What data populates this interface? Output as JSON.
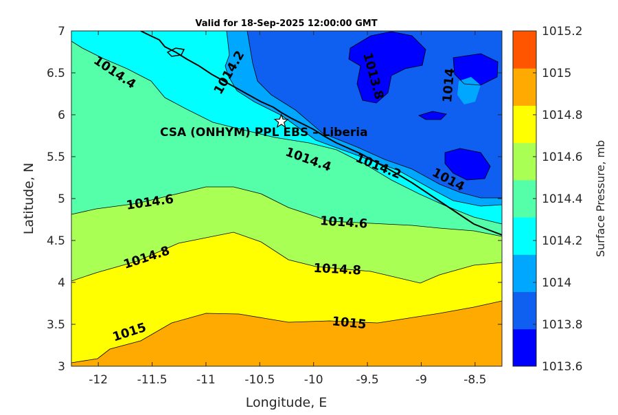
{
  "chart_data": {
    "type": "contour",
    "title": "Valid for 18-Sep-2025 12:00:00 GMT",
    "xlabel": "Longitude, E",
    "ylabel": "Latitude, N",
    "colorbar_label": "Surface Pressure, mb",
    "xlim": [
      -12.25,
      -8.25
    ],
    "ylim": [
      3,
      7
    ],
    "xticks": [
      -12,
      -11.5,
      -11,
      -10.5,
      -10,
      -9.5,
      -9,
      -8.5
    ],
    "yticks": [
      3,
      3.5,
      4,
      4.5,
      5,
      5.5,
      6,
      6.5,
      7
    ],
    "xtick_labels": [
      "-12",
      "-11.5",
      "-11",
      "-10.5",
      "-10",
      "-9.5",
      "-9",
      "-8.5"
    ],
    "ytick_labels": [
      "3",
      "3.5",
      "4",
      "4.5",
      "5",
      "5.5",
      "6",
      "6.5",
      "7"
    ],
    "colorbar_ticks": [
      "1013.6",
      "1013.8",
      "1014",
      "1014.2",
      "1014.4",
      "1014.6",
      "1014.8",
      "1015",
      "1015.2"
    ],
    "levels": [
      1013.6,
      1013.8,
      1014,
      1014.2,
      1014.4,
      1014.6,
      1014.8,
      1015,
      1015.2
    ],
    "level_colors": [
      "#0000ff",
      "#0f5ff0",
      "#00a7ff",
      "#00ffff",
      "#55ffa9",
      "#aaff55",
      "#ffff00",
      "#ffaa00",
      "#ff5500"
    ],
    "contour_labels": [
      {
        "text": "1014.4",
        "lon": -11.85,
        "lat": 6.5,
        "angle": 34
      },
      {
        "text": "1014.2",
        "lon": -10.78,
        "lat": 6.5,
        "angle": -60
      },
      {
        "text": "1013.8",
        "lon": -9.45,
        "lat": 6.46,
        "angle": 75
      },
      {
        "text": "1014",
        "lon": -8.74,
        "lat": 6.35,
        "angle": -85
      },
      {
        "text": "1014.4",
        "lon": -10.05,
        "lat": 5.46,
        "angle": 20
      },
      {
        "text": "1014.2",
        "lon": -9.4,
        "lat": 5.38,
        "angle": 22
      },
      {
        "text": "1014",
        "lon": -8.75,
        "lat": 5.22,
        "angle": 28
      },
      {
        "text": "1014.6",
        "lon": -11.52,
        "lat": 4.95,
        "angle": -8
      },
      {
        "text": "1014.6",
        "lon": -9.72,
        "lat": 4.71,
        "angle": 4
      },
      {
        "text": "1014.8",
        "lon": -11.55,
        "lat": 4.29,
        "angle": -18
      },
      {
        "text": "1014.8",
        "lon": -9.78,
        "lat": 4.15,
        "angle": 3
      },
      {
        "text": "1015",
        "lon": -11.71,
        "lat": 3.4,
        "angle": -18
      },
      {
        "text": "1015",
        "lon": -9.67,
        "lat": 3.51,
        "angle": 6
      }
    ],
    "site": {
      "name": "CSA (ONHYM) PPL EBS  – Liberia",
      "lon": -10.3,
      "lat": 5.92
    },
    "grid": false,
    "colormap": "parula-like (blue to orange)"
  }
}
